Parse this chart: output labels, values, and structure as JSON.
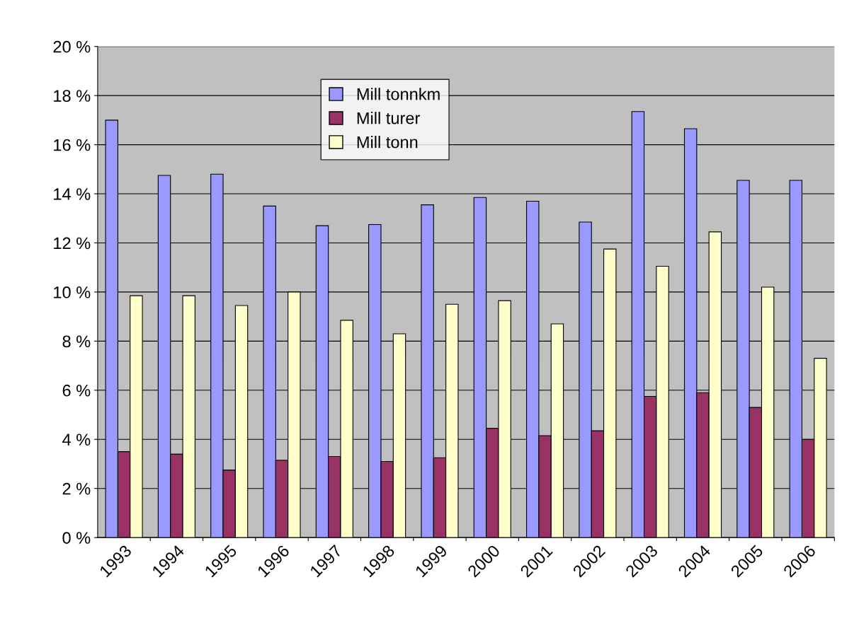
{
  "chart_data": {
    "type": "bar",
    "categories": [
      "1993",
      "1994",
      "1995",
      "1996",
      "1997",
      "1998",
      "1999",
      "2000",
      "2001",
      "2002",
      "2003",
      "2004",
      "2005",
      "2006"
    ],
    "series": [
      {
        "name": "Mill tonnkm",
        "color": "#9999ff",
        "values": [
          17.0,
          14.75,
          14.8,
          13.5,
          12.7,
          12.75,
          13.55,
          13.85,
          13.7,
          12.85,
          17.35,
          16.65,
          14.55,
          14.55
        ]
      },
      {
        "name": "Mill turer",
        "color": "#993366",
        "values": [
          3.5,
          3.4,
          2.75,
          3.15,
          3.3,
          3.1,
          3.25,
          4.45,
          4.15,
          4.35,
          5.75,
          5.9,
          5.3,
          4.0
        ]
      },
      {
        "name": "Mill tonn",
        "color": "#ffffcc",
        "values": [
          9.85,
          9.85,
          9.45,
          10.0,
          8.85,
          8.3,
          9.5,
          9.65,
          8.7,
          11.75,
          11.05,
          12.45,
          10.2,
          7.3
        ]
      }
    ],
    "ylim": [
      0,
      20
    ],
    "yticks": [
      {
        "value": 0,
        "label": "0 %"
      },
      {
        "value": 2,
        "label": "2 %"
      },
      {
        "value": 4,
        "label": "4 %"
      },
      {
        "value": 6,
        "label": "6 %"
      },
      {
        "value": 8,
        "label": "8 %"
      },
      {
        "value": 10,
        "label": "10 %"
      },
      {
        "value": 12,
        "label": "12 %"
      },
      {
        "value": 14,
        "label": "14 %"
      },
      {
        "value": 16,
        "label": "16 %"
      },
      {
        "value": 18,
        "label": "18 %"
      },
      {
        "value": 20,
        "label": "20 %"
      }
    ],
    "grid": "y",
    "legend": "top"
  }
}
